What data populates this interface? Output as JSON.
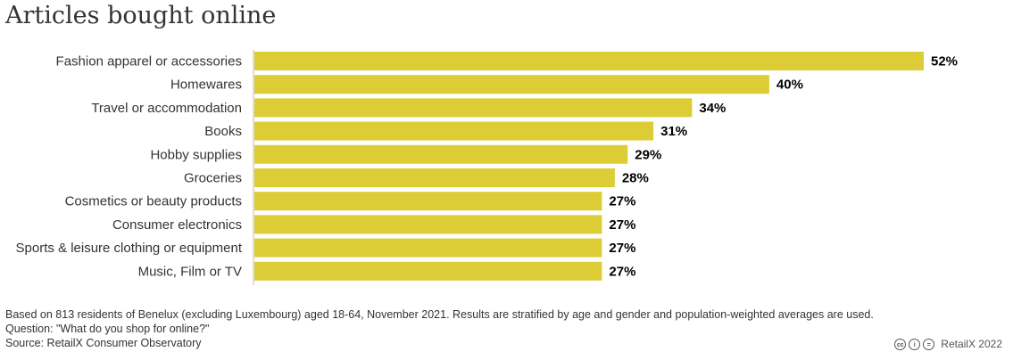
{
  "chart_data": {
    "type": "bar",
    "orientation": "horizontal",
    "title": "Articles bought online",
    "categories": [
      "Fashion apparel or accessories",
      "Homewares",
      "Travel or accommodation",
      "Books",
      "Hobby supplies",
      "Groceries",
      "Cosmetics or beauty products",
      "Consumer electronics",
      "Sports & leisure clothing or equipment",
      "Music, Film or TV"
    ],
    "values": [
      52,
      40,
      34,
      31,
      29,
      28,
      27,
      27,
      27,
      27
    ],
    "value_labels": [
      "52%",
      "40%",
      "34%",
      "31%",
      "29%",
      "28%",
      "27%",
      "27%",
      "27%",
      "27%"
    ],
    "xlim": [
      0,
      52
    ],
    "bar_color": "#dccd37",
    "grid": false
  },
  "footer": {
    "note": "Based on 813 residents of Benelux (excluding Luxembourg) aged 18-64, November 2021. Results are stratified by age and gender and population-weighted averages are used.",
    "question": "Question: \"What do you shop for online?\"",
    "source": "Source: RetailX Consumer Observatory",
    "credit": "RetailX 2022",
    "icons": [
      "cc-icon",
      "attribution-icon",
      "no-derivatives-icon"
    ],
    "icon_glyphs": [
      "cc",
      "i",
      "="
    ]
  }
}
